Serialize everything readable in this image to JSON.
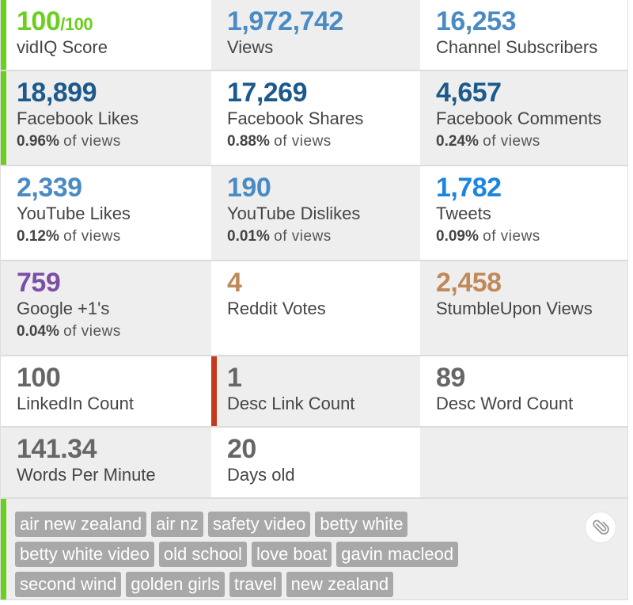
{
  "colors": {
    "green": "#6bcf1e",
    "dark_blue": "#1d5a8c",
    "mid_blue": "#4a8bc4",
    "bright_blue": "#1b86e0",
    "purple": "#7b4fa8",
    "orange": "#c0895a",
    "gray": "#666666",
    "red": "#c43a1b"
  },
  "stats": {
    "vidiq_score": {
      "value": "100",
      "max": "/100",
      "label": "vidIQ Score"
    },
    "views": {
      "value": "1,972,742",
      "label": "Views"
    },
    "subscribers": {
      "value": "16,253",
      "label": "Channel Subscribers"
    },
    "fb_likes": {
      "value": "18,899",
      "label": "Facebook Likes",
      "pct": "0.96%",
      "of": "of views"
    },
    "fb_shares": {
      "value": "17,269",
      "label": "Facebook Shares",
      "pct": "0.88%",
      "of": "of views"
    },
    "fb_comments": {
      "value": "4,657",
      "label": "Facebook Comments",
      "pct": "0.24%",
      "of": "of views"
    },
    "yt_likes": {
      "value": "2,339",
      "label": "YouTube Likes",
      "pct": "0.12%",
      "of": "of views"
    },
    "yt_dislikes": {
      "value": "190",
      "label": "YouTube Dislikes",
      "pct": "0.01%",
      "of": "of views"
    },
    "tweets": {
      "value": "1,782",
      "label": "Tweets",
      "pct": "0.09%",
      "of": "of views"
    },
    "google_plus": {
      "value": "759",
      "label": "Google +1's",
      "pct": "0.04%",
      "of": "of views"
    },
    "reddit": {
      "value": "4",
      "label": "Reddit Votes"
    },
    "stumbleupon": {
      "value": "2,458",
      "label": "StumbleUpon Views"
    },
    "linkedin": {
      "value": "100",
      "label": "LinkedIn Count"
    },
    "desc_links": {
      "value": "1",
      "label": "Desc Link Count"
    },
    "desc_words": {
      "value": "89",
      "label": "Desc Word Count"
    },
    "wpm": {
      "value": "141.34",
      "label": "Words Per Minute"
    },
    "days_old": {
      "value": "20",
      "label": "Days old"
    }
  },
  "tags": [
    [
      "air new zealand",
      "air nz",
      "safety video",
      "betty white"
    ],
    [
      "betty white video",
      "old school",
      "love boat",
      "gavin macleod"
    ],
    [
      "second wind",
      "golden girls",
      "travel",
      "new zealand"
    ]
  ],
  "icons": {
    "clip": "paperclip-icon"
  }
}
